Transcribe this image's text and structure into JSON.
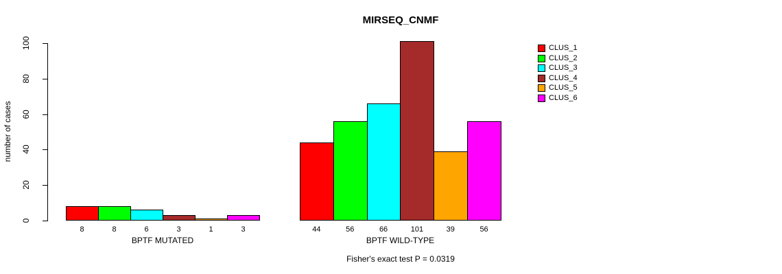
{
  "chart_data": {
    "type": "bar",
    "title": "MIRSEQ_CNMF",
    "ylabel": "number of cases",
    "xlabel": "",
    "ylim": [
      0,
      100
    ],
    "yticks": [
      0,
      20,
      40,
      60,
      80,
      100
    ],
    "grid": false,
    "legend_position": "top-right",
    "footnote": "Fisher's exact test P = 0.0319",
    "categories": [
      "BPTF MUTATED",
      "BPTF WILD-TYPE"
    ],
    "series": [
      {
        "name": "CLUS_1",
        "color": "#ff0000",
        "values": [
          8,
          44
        ]
      },
      {
        "name": "CLUS_2",
        "color": "#00ff00",
        "values": [
          8,
          56
        ]
      },
      {
        "name": "CLUS_3",
        "color": "#00ffff",
        "values": [
          6,
          66
        ]
      },
      {
        "name": "CLUS_4",
        "color": "#a52a2a",
        "values": [
          3,
          101
        ]
      },
      {
        "name": "CLUS_5",
        "color": "#ffa500",
        "values": [
          1,
          39
        ]
      },
      {
        "name": "CLUS_6",
        "color": "#ff00ff",
        "values": [
          3,
          56
        ]
      }
    ]
  }
}
